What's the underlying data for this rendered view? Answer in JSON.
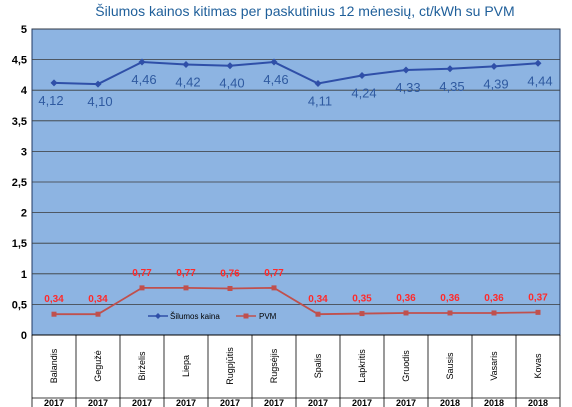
{
  "chart_data": {
    "type": "line",
    "title": "Šilumos kainos kitimas per paskutinius 12 mėnesių, ct/kWh su PVM",
    "xlabel": "",
    "ylabel": "",
    "ylim": [
      0,
      5
    ],
    "yticks": [
      "0",
      "0,5",
      "1",
      "1,5",
      "2",
      "2,5",
      "3",
      "3,5",
      "4",
      "4,5",
      "5"
    ],
    "grid": true,
    "legend": "bottom-left",
    "categories": [
      "Balandis",
      "Gegužė",
      "Birželis",
      "Liepa",
      "Rugpjūtis",
      "Rugsėjis",
      "Spalis",
      "Lapkritis",
      "Gruodis",
      "Sausis",
      "Vasaris",
      "Kovas"
    ],
    "years": [
      "2017",
      "2017",
      "2017",
      "2017",
      "2017",
      "2017",
      "2017",
      "2017",
      "2017",
      "2018",
      "2018",
      "2018"
    ],
    "series": [
      {
        "name": "Šilumos kaina",
        "color": "#2f4fa8",
        "values": [
          4.12,
          4.1,
          4.46,
          4.42,
          4.4,
          4.46,
          4.11,
          4.24,
          4.33,
          4.35,
          4.39,
          4.44
        ],
        "labels": [
          "4,12",
          "4,10",
          "4,46",
          "4,42",
          "4,40",
          "4,46",
          "4,11",
          "4,24",
          "4,33",
          "4,35",
          "4,39",
          "4,44"
        ]
      },
      {
        "name": "PVM",
        "color": "#c0504d",
        "values": [
          0.34,
          0.34,
          0.77,
          0.77,
          0.76,
          0.77,
          0.34,
          0.35,
          0.36,
          0.36,
          0.36,
          0.37
        ],
        "labels": [
          "0,34",
          "0,34",
          "0,77",
          "0,77",
          "0,76",
          "0,77",
          "0,34",
          "0,35",
          "0,36",
          "0,36",
          "0,36",
          "0,37"
        ]
      }
    ],
    "colors": {
      "plot_background": "#8db4e2",
      "plot_border": "#1f3864",
      "title_color": "#1f5f9a",
      "main_label_color": "#2f5aa0",
      "vat_label_color": "#ff2a2a"
    }
  }
}
